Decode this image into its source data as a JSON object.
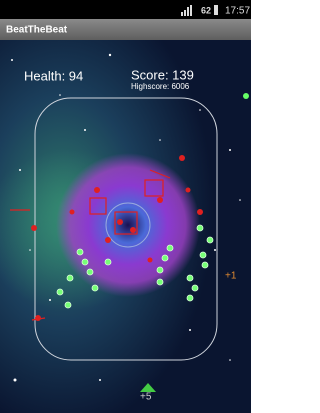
{
  "status_bar": {
    "battery": "62",
    "time": "17:57"
  },
  "app_bar": {
    "title": "BeatTheBeat"
  },
  "hud": {
    "health": "Health: 94",
    "score": "Score: 139",
    "highscore": "Highscore: 6006"
  },
  "popups": [
    "+1",
    "+5"
  ]
}
